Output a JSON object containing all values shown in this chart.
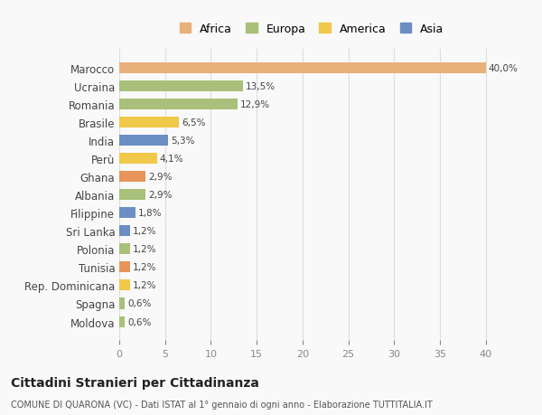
{
  "categories": [
    "Moldova",
    "Spagna",
    "Rep. Dominicana",
    "Tunisia",
    "Polonia",
    "Sri Lanka",
    "Filippine",
    "Albania",
    "Ghana",
    "Perù",
    "India",
    "Brasile",
    "Romania",
    "Ucraina",
    "Marocco"
  ],
  "values": [
    0.6,
    0.6,
    1.2,
    1.2,
    1.2,
    1.2,
    1.8,
    2.9,
    2.9,
    4.1,
    5.3,
    6.5,
    12.9,
    13.5,
    40.0
  ],
  "labels": [
    "0,6%",
    "0,6%",
    "1,2%",
    "1,2%",
    "1,2%",
    "1,2%",
    "1,8%",
    "2,9%",
    "2,9%",
    "4,1%",
    "5,3%",
    "6,5%",
    "12,9%",
    "13,5%",
    "40,0%"
  ],
  "colors": [
    "#a8c07a",
    "#a8c07a",
    "#f0c84a",
    "#e8945a",
    "#a8c07a",
    "#6b8ec4",
    "#6b8ec4",
    "#a8c07a",
    "#e8945a",
    "#f0c84a",
    "#6b8ec4",
    "#f0c84a",
    "#a8c07a",
    "#a8c07a",
    "#e8b07a"
  ],
  "continent_colors": {
    "Africa": "#e8b07a",
    "Europa": "#a8c07a",
    "America": "#f0c84a",
    "Asia": "#6b8ec4"
  },
  "legend_order": [
    "Africa",
    "Europa",
    "America",
    "Asia"
  ],
  "xlim": [
    0,
    42
  ],
  "xticks": [
    0,
    5,
    10,
    15,
    20,
    25,
    30,
    35,
    40
  ],
  "title": "Cittadini Stranieri per Cittadinanza",
  "subtitle": "COMUNE DI QUARONA (VC) - Dati ISTAT al 1° gennaio di ogni anno - Elaborazione TUTTITALIA.IT",
  "bg_color": "#f9f9f9",
  "bar_height": 0.6,
  "grid_color": "#dddddd"
}
